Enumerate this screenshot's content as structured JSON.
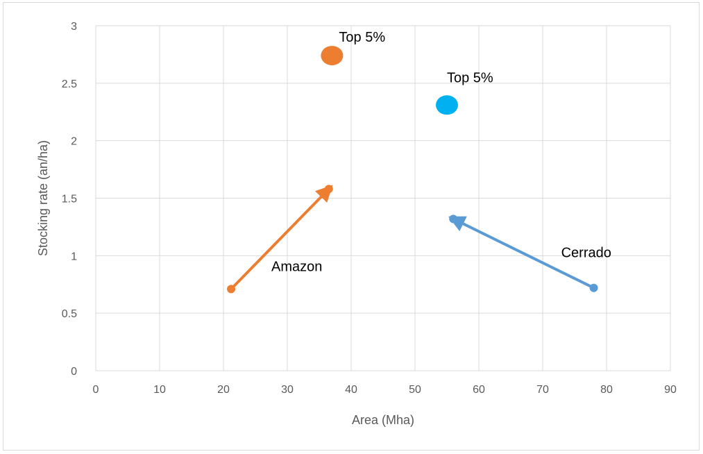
{
  "chart_data": {
    "type": "scatter",
    "title": "",
    "xlabel": "Area (Mha)",
    "ylabel": "Stocking rate (an/ha)",
    "xlim": [
      0,
      90
    ],
    "ylim": [
      0,
      3
    ],
    "xticks": [
      0,
      10,
      20,
      30,
      40,
      50,
      60,
      70,
      80,
      90
    ],
    "yticks": [
      0,
      0.5,
      1,
      1.5,
      2,
      2.5,
      3
    ],
    "ytick_labels": [
      "0",
      "0.5",
      "1",
      "1.5",
      "2",
      "2.5",
      "3"
    ],
    "grid": true,
    "legend": "none",
    "series": [
      {
        "name": "Amazon",
        "color": "#ED7D31",
        "points": [
          {
            "x": 21.2,
            "y": 0.71
          },
          {
            "x": 36.5,
            "y": 1.58
          }
        ],
        "arrow": true
      },
      {
        "name": "Cerrado",
        "color": "#5B9BD5",
        "points": [
          {
            "x": 78,
            "y": 0.72
          },
          {
            "x": 56,
            "y": 1.32
          }
        ],
        "arrow": true
      }
    ],
    "highlights": [
      {
        "label": "Top 5%",
        "x": 37,
        "y": 2.74,
        "color": "#ED7D31"
      },
      {
        "label": "Top 5%",
        "x": 55,
        "y": 2.31,
        "color": "#00B0F0"
      }
    ]
  }
}
